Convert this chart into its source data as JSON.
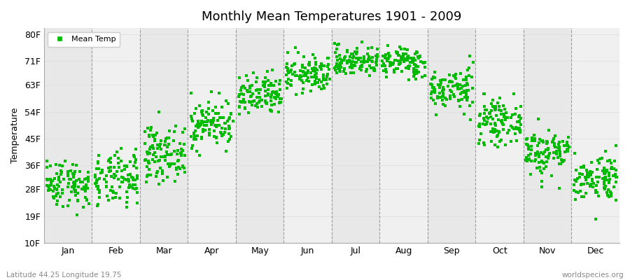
{
  "title": "Monthly Mean Temperatures 1901 - 2009",
  "ylabel": "Temperature",
  "ytick_values": [
    10,
    19,
    28,
    36,
    45,
    54,
    63,
    71,
    80
  ],
  "ytick_labels": [
    "10F",
    "19F",
    "28F",
    "36F",
    "45F",
    "54F",
    "63F",
    "71F",
    "80F"
  ],
  "ylim": [
    10,
    82
  ],
  "xlim": [
    0,
    12
  ],
  "months": [
    "Jan",
    "Feb",
    "Mar",
    "Apr",
    "May",
    "Jun",
    "Jul",
    "Aug",
    "Sep",
    "Oct",
    "Nov",
    "Dec"
  ],
  "marker_color": "#00BB00",
  "marker": "s",
  "marker_size": 3,
  "background_color": "#FFFFFF",
  "band_colors": [
    "#E8E8E8",
    "#F0F0F0",
    "#E8E8E8",
    "#F0F0F0",
    "#E8E8E8",
    "#F0F0F0",
    "#E8E8E8",
    "#F0F0F0",
    "#E8E8E8",
    "#F0F0F0",
    "#E8E8E8",
    "#F0F0F0"
  ],
  "legend_label": "Mean Temp",
  "bottom_left": "Latitude 44.25 Longitude 19.75",
  "bottom_right": "worldspecies.org",
  "vline_color": "#888888",
  "hgrid_color": "#DDDDDD",
  "monthly_mean_temps_F": [
    30.0,
    31.0,
    40.0,
    50.0,
    59.0,
    66.5,
    71.0,
    70.5,
    61.5,
    50.5,
    40.5,
    32.0
  ],
  "monthly_std_F": [
    4.0,
    4.5,
    4.5,
    4.0,
    3.5,
    3.0,
    2.5,
    2.5,
    3.5,
    3.5,
    4.0,
    4.0
  ],
  "n_years": 109,
  "seed": 42
}
